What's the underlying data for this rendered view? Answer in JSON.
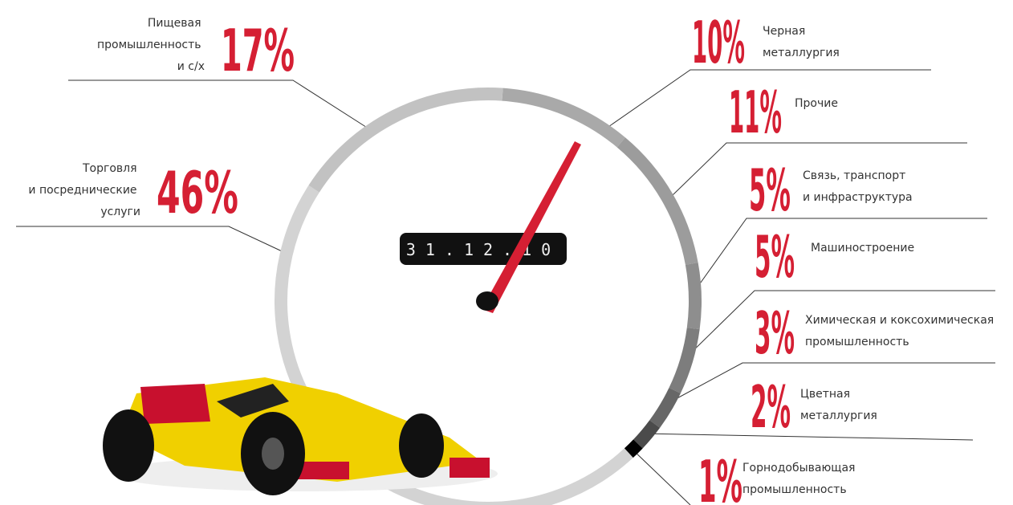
{
  "chart_data": {
    "type": "donut",
    "date": "31.12.10",
    "categories": [
      "Черная\nметаллургия",
      "Прочие",
      "Связь, транспорт\nи инфраструктура",
      "Машиностроение",
      "Химическая  и коксохимическая\nпромышленность",
      "Цветная\nметаллургия",
      "Горнодобывающая\nпромышленность",
      "Торговля\nи посреднические\nуслуги",
      "Пищевая\nпромышленность\nи с/х"
    ],
    "values": [
      10,
      11,
      5,
      5,
      3,
      2,
      1,
      46,
      17
    ],
    "value_labels": [
      "10%",
      "11%",
      "5%",
      "5%",
      "3%",
      "2%",
      "1%",
      "46%",
      "17%"
    ],
    "colors": [
      "#a9a9a9",
      "#9c9c9c",
      "#8e8e8e",
      "#7d7d7d",
      "#676767",
      "#4b4b4b",
      "#000000",
      "#d3d3d3",
      "#c2c2c2"
    ],
    "label_color": "#d51f33"
  }
}
